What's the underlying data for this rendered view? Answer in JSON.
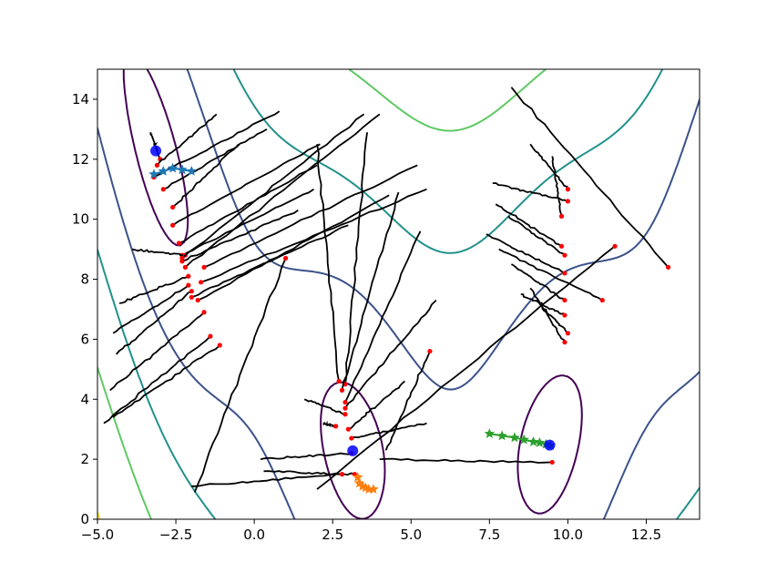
{
  "chart_data": {
    "type": "line",
    "title": "",
    "xlabel": "",
    "ylabel": "",
    "xlim": [
      -5.0,
      14.2
    ],
    "ylim": [
      0,
      15
    ],
    "grid": false,
    "x_ticks": [
      -5.0,
      -2.5,
      0.0,
      2.5,
      5.0,
      7.5,
      10.0,
      12.5
    ],
    "x_tick_labels": [
      "−5.0",
      "−2.5",
      "0.0",
      "2.5",
      "5.0",
      "7.5",
      "10.0",
      "12.5"
    ],
    "y_ticks": [
      0,
      2,
      4,
      6,
      8,
      10,
      12,
      14
    ],
    "y_tick_labels": [
      "0",
      "2",
      "4",
      "6",
      "8",
      "10",
      "12",
      "14"
    ],
    "function": "Branin",
    "contour_levels": [
      {
        "level": 5,
        "color": "#440154"
      },
      {
        "level": 30,
        "color": "#3b528b"
      },
      {
        "level": 80,
        "color": "#21918c"
      },
      {
        "level": 160,
        "color": "#5ec962"
      },
      {
        "level": 300,
        "color": "#fde725"
      }
    ],
    "minima": [
      [
        -3.14,
        12.28
      ],
      [
        3.14,
        2.28
      ],
      [
        9.42,
        2.47
      ]
    ],
    "minima_marker_color": "#0000ff",
    "trajectory_color": "#000000",
    "endpoint_marker_color": "#ff0000",
    "paths": [
      {
        "start": [
          -3.3,
          12.9
        ],
        "end": [
          -3.0,
          12.0
        ]
      },
      {
        "start": [
          -1.2,
          13.5
        ],
        "end": [
          -3.1,
          11.8
        ]
      },
      {
        "start": [
          0.8,
          13.6
        ],
        "end": [
          -3.2,
          11.4
        ]
      },
      {
        "start": [
          0.4,
          13.0
        ],
        "end": [
          -2.9,
          11.0
        ]
      },
      {
        "start": [
          -0.5,
          12.5
        ],
        "end": [
          -2.6,
          10.4
        ]
      },
      {
        "start": [
          2.1,
          12.5
        ],
        "end": [
          -2.6,
          9.8
        ]
      },
      {
        "start": [
          2.0,
          11.8
        ],
        "end": [
          -2.4,
          9.2
        ]
      },
      {
        "start": [
          1.9,
          11.0
        ],
        "end": [
          -2.3,
          8.8
        ]
      },
      {
        "start": [
          1.4,
          10.3
        ],
        "end": [
          -2.3,
          8.6
        ]
      },
      {
        "start": [
          -3.9,
          9.0
        ],
        "end": [
          -2.2,
          8.8
        ]
      },
      {
        "start": [
          3.5,
          13.5
        ],
        "end": [
          -2.3,
          8.7
        ]
      },
      {
        "start": [
          4.0,
          13.5
        ],
        "end": [
          -2.2,
          8.4
        ]
      },
      {
        "start": [
          -4.3,
          7.2
        ],
        "end": [
          -2.1,
          8.1
        ]
      },
      {
        "start": [
          -4.5,
          6.2
        ],
        "end": [
          -2.1,
          7.8
        ]
      },
      {
        "start": [
          -4.4,
          5.5
        ],
        "end": [
          -2.0,
          7.6
        ]
      },
      {
        "start": [
          -4.6,
          4.3
        ],
        "end": [
          -1.6,
          6.9
        ]
      },
      {
        "start": [
          -4.5,
          3.4
        ],
        "end": [
          -1.1,
          5.8
        ]
      },
      {
        "start": [
          -4.8,
          3.2
        ],
        "end": [
          -1.4,
          6.1
        ]
      },
      {
        "start": [
          5.2,
          11.8
        ],
        "end": [
          -1.6,
          8.4
        ]
      },
      {
        "start": [
          5.5,
          11.0
        ],
        "end": [
          -1.7,
          7.9
        ]
      },
      {
        "start": [
          4.3,
          10.8
        ],
        "end": [
          -1.8,
          7.3
        ]
      },
      {
        "start": [
          3.0,
          9.8
        ],
        "end": [
          -2.0,
          7.4
        ]
      },
      {
        "start": [
          3.6,
          12.9
        ],
        "end": [
          2.9,
          4.5
        ]
      },
      {
        "start": [
          2.0,
          12.5
        ],
        "end": [
          2.7,
          4.6
        ]
      },
      {
        "start": [
          4.6,
          10.9
        ],
        "end": [
          2.8,
          4.3
        ]
      },
      {
        "start": [
          5.3,
          9.6
        ],
        "end": [
          2.9,
          3.9
        ]
      },
      {
        "start": [
          5.8,
          7.3
        ],
        "end": [
          2.9,
          3.7
        ]
      },
      {
        "start": [
          4.8,
          4.6
        ],
        "end": [
          3.0,
          3.0
        ]
      },
      {
        "start": [
          5.5,
          3.2
        ],
        "end": [
          3.1,
          2.7
        ]
      },
      {
        "start": [
          2.2,
          3.2
        ],
        "end": [
          2.6,
          3.1
        ]
      },
      {
        "start": [
          1.6,
          4.0
        ],
        "end": [
          2.9,
          3.5
        ]
      },
      {
        "start": [
          0.2,
          2.0
        ],
        "end": [
          3.1,
          2.2
        ]
      },
      {
        "start": [
          0.3,
          1.6
        ],
        "end": [
          3.2,
          1.5
        ]
      },
      {
        "start": [
          -2.0,
          1.1
        ],
        "end": [
          2.8,
          1.5
        ]
      },
      {
        "start": [
          -1.9,
          0.9
        ],
        "end": [
          1.0,
          8.7
        ]
      },
      {
        "start": [
          4.0,
          2.0
        ],
        "end": [
          9.5,
          1.9
        ]
      },
      {
        "start": [
          2.0,
          1.0
        ],
        "end": [
          11.5,
          9.1
        ]
      },
      {
        "start": [
          4.2,
          2.3
        ],
        "end": [
          5.6,
          5.6
        ]
      },
      {
        "start": [
          8.2,
          14.4
        ],
        "end": [
          13.2,
          8.4
        ]
      },
      {
        "start": [
          7.6,
          11.2
        ],
        "end": [
          10.0,
          10.6
        ]
      },
      {
        "start": [
          8.8,
          12.5
        ],
        "end": [
          10.0,
          11.0
        ]
      },
      {
        "start": [
          9.5,
          12.1
        ],
        "end": [
          9.8,
          10.1
        ]
      },
      {
        "start": [
          7.7,
          10.5
        ],
        "end": [
          9.8,
          9.1
        ]
      },
      {
        "start": [
          8.1,
          10.1
        ],
        "end": [
          9.9,
          8.8
        ]
      },
      {
        "start": [
          7.4,
          9.5
        ],
        "end": [
          9.9,
          8.2
        ]
      },
      {
        "start": [
          7.8,
          9.0
        ],
        "end": [
          11.1,
          7.3
        ]
      },
      {
        "start": [
          8.2,
          8.5
        ],
        "end": [
          9.9,
          7.3
        ]
      },
      {
        "start": [
          8.5,
          7.5
        ],
        "end": [
          9.9,
          6.8
        ]
      },
      {
        "start": [
          9.0,
          7.3
        ],
        "end": [
          10.0,
          6.2
        ]
      },
      {
        "start": [
          8.8,
          7.7
        ],
        "end": [
          9.9,
          5.9
        ]
      }
    ],
    "optimizer_series": [
      {
        "color": "#1f77b4",
        "marker": "star",
        "points": [
          [
            -3.2,
            11.5
          ],
          [
            -2.9,
            11.6
          ],
          [
            -2.6,
            11.7
          ],
          [
            -2.3,
            11.65
          ],
          [
            -2.0,
            11.6
          ]
        ]
      },
      {
        "color": "#ff7f0e",
        "marker": "star",
        "points": [
          [
            3.3,
            1.4
          ],
          [
            3.35,
            1.2
          ],
          [
            3.45,
            1.1
          ],
          [
            3.55,
            1.05
          ],
          [
            3.65,
            1.0
          ],
          [
            3.8,
            1.0
          ]
        ]
      },
      {
        "color": "#2ca02c",
        "marker": "star",
        "points": [
          [
            7.5,
            2.85
          ],
          [
            7.9,
            2.78
          ],
          [
            8.3,
            2.72
          ],
          [
            8.6,
            2.65
          ],
          [
            8.9,
            2.58
          ],
          [
            9.1,
            2.55
          ],
          [
            9.3,
            2.5
          ],
          [
            9.45,
            2.45
          ]
        ]
      }
    ]
  }
}
